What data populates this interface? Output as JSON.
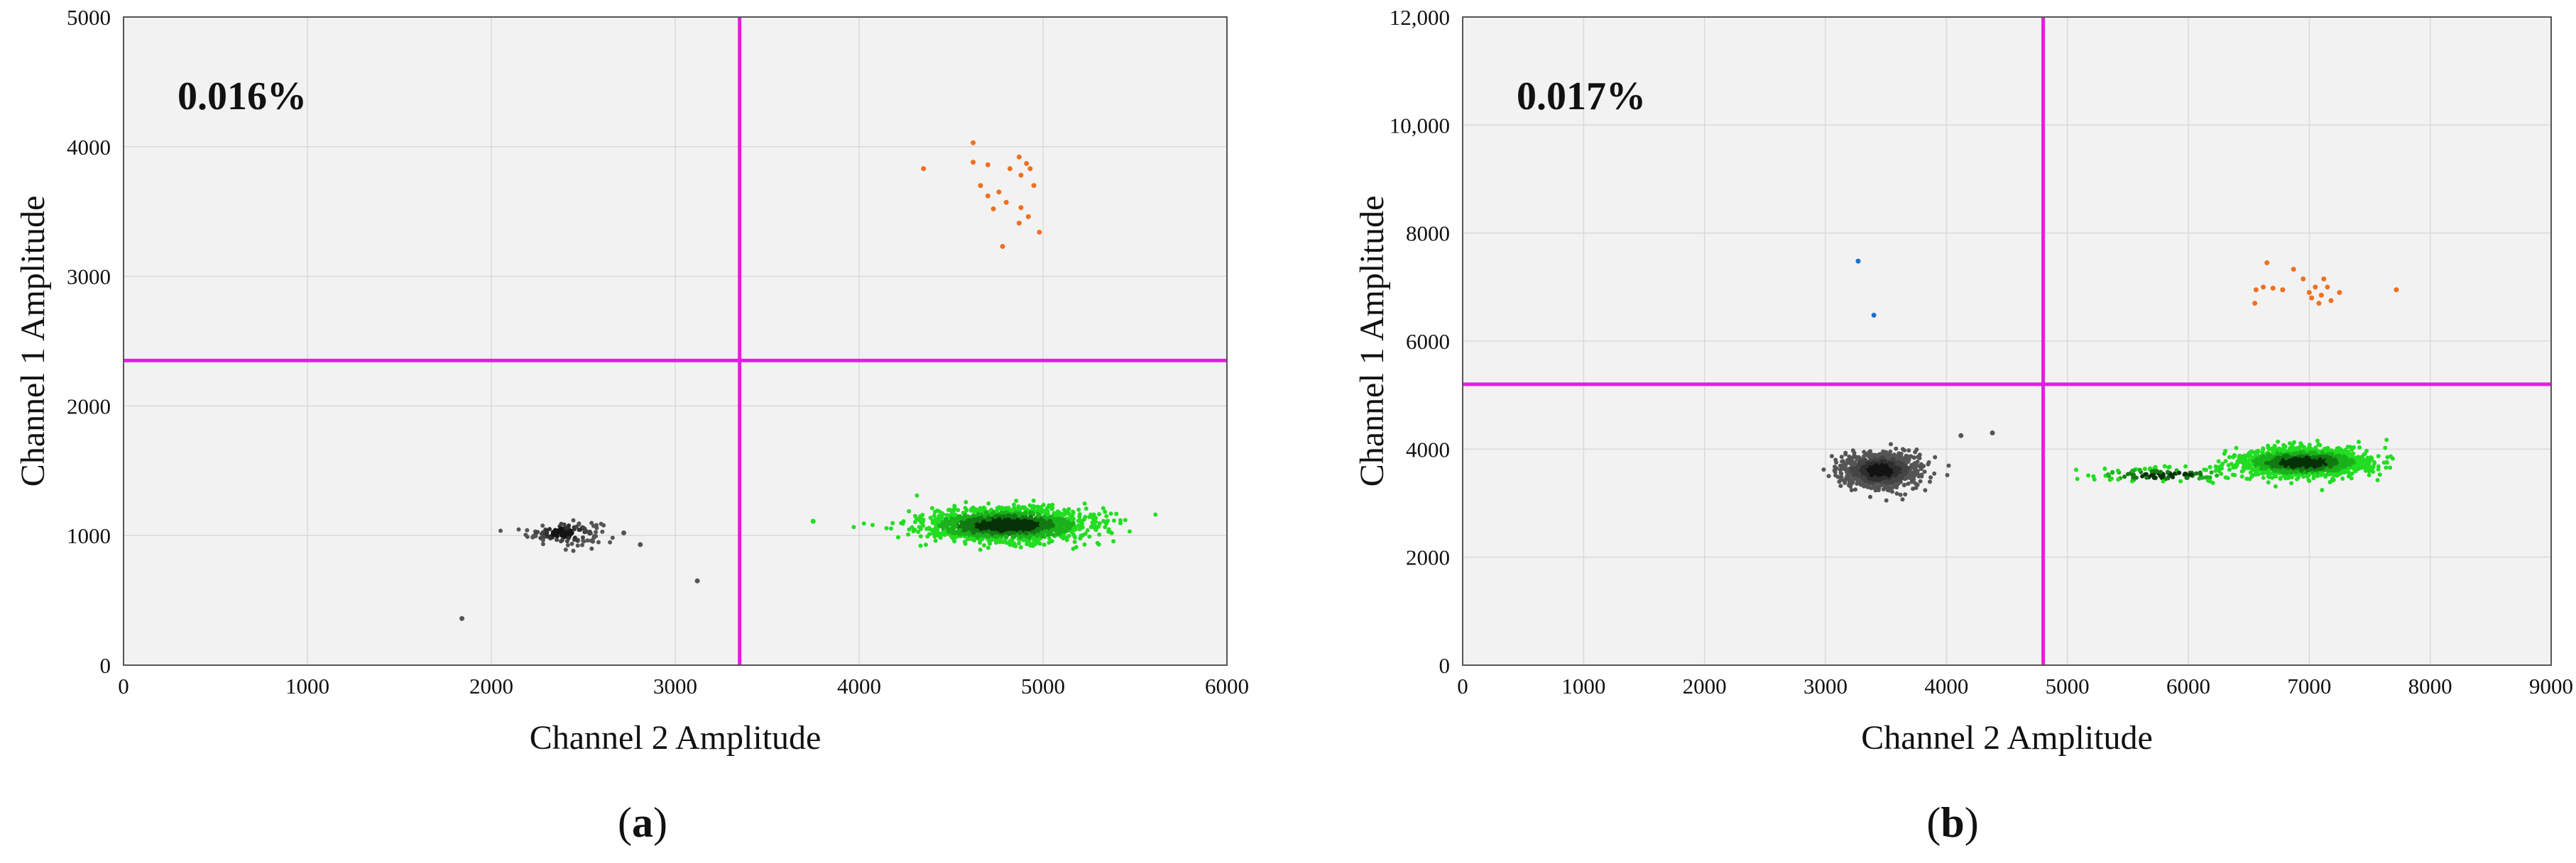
{
  "colors": {
    "plot_background": "#f2f2f2",
    "grid": "#d9d9d9",
    "threshold": "#e020e0",
    "double_negative": "#555555",
    "channel2_positive": "#22dd22",
    "channel1_positive": "#f07020",
    "stray": "#1a6fd0"
  },
  "chart_data": [
    {
      "type": "scatter",
      "panel_label": "a",
      "annotation": "0.016%",
      "xlabel": "Channel 2 Amplitude",
      "ylabel": "Channel 1 Amplitude",
      "xlim": [
        0,
        6000
      ],
      "ylim": [
        0,
        5000
      ],
      "xticks": [
        "0",
        "1000",
        "2000",
        "3000",
        "4000",
        "5000",
        "6000"
      ],
      "yticks": [
        "0",
        "1000",
        "2000",
        "3000",
        "4000",
        "5000"
      ],
      "grid": true,
      "thresholds": {
        "x": 3350,
        "y": 2350
      },
      "clusters": [
        {
          "color_key": "double_negative",
          "cx": 2400,
          "cy": 1020,
          "sx": 100,
          "sy": 45,
          "n": 140
        },
        {
          "color_key": "channel2_positive",
          "cx": 4800,
          "cy": 1080,
          "sx": 230,
          "sy": 65,
          "n": 1600
        }
      ],
      "points": [
        {
          "color_key": "double_negative",
          "x": 1840,
          "y": 360
        },
        {
          "color_key": "double_negative",
          "x": 2720,
          "y": 1020
        },
        {
          "color_key": "double_negative",
          "x": 2810,
          "y": 930
        },
        {
          "color_key": "double_negative",
          "x": 3120,
          "y": 650
        },
        {
          "color_key": "channel2_positive",
          "x": 3750,
          "y": 1110
        },
        {
          "color_key": "channel1_positive",
          "x": 4350,
          "y": 3830
        },
        {
          "color_key": "channel1_positive",
          "x": 4620,
          "y": 4030
        },
        {
          "color_key": "channel1_positive",
          "x": 4620,
          "y": 3880
        },
        {
          "color_key": "channel1_positive",
          "x": 4700,
          "y": 3860
        },
        {
          "color_key": "channel1_positive",
          "x": 4820,
          "y": 3830
        },
        {
          "color_key": "channel1_positive",
          "x": 4870,
          "y": 3920
        },
        {
          "color_key": "channel1_positive",
          "x": 4910,
          "y": 3870
        },
        {
          "color_key": "channel1_positive",
          "x": 4930,
          "y": 3830
        },
        {
          "color_key": "channel1_positive",
          "x": 4880,
          "y": 3780
        },
        {
          "color_key": "channel1_positive",
          "x": 4660,
          "y": 3700
        },
        {
          "color_key": "channel1_positive",
          "x": 4700,
          "y": 3620
        },
        {
          "color_key": "channel1_positive",
          "x": 4760,
          "y": 3650
        },
        {
          "color_key": "channel1_positive",
          "x": 4950,
          "y": 3700
        },
        {
          "color_key": "channel1_positive",
          "x": 4730,
          "y": 3520
        },
        {
          "color_key": "channel1_positive",
          "x": 4800,
          "y": 3570
        },
        {
          "color_key": "channel1_positive",
          "x": 4880,
          "y": 3530
        },
        {
          "color_key": "channel1_positive",
          "x": 4920,
          "y": 3460
        },
        {
          "color_key": "channel1_positive",
          "x": 4870,
          "y": 3410
        },
        {
          "color_key": "channel1_positive",
          "x": 4980,
          "y": 3340
        },
        {
          "color_key": "channel1_positive",
          "x": 4780,
          "y": 3230
        }
      ]
    },
    {
      "type": "scatter",
      "panel_label": "b",
      "annotation": "0.017%",
      "xlabel": "Channel 2 Amplitude",
      "ylabel": "Channel 1 Amplitude",
      "xlim": [
        0,
        9000
      ],
      "ylim": [
        0,
        12000
      ],
      "xticks": [
        "0",
        "1000",
        "2000",
        "3000",
        "4000",
        "5000",
        "6000",
        "7000",
        "8000",
        "9000"
      ],
      "yticks": [
        "0",
        "2000",
        "4000",
        "6000",
        "8000",
        "10,000",
        "12,000"
      ],
      "grid": true,
      "thresholds": {
        "x": 4800,
        "y": 5200
      },
      "clusters": [
        {
          "color_key": "double_negative",
          "cx": 3450,
          "cy": 3600,
          "sx": 150,
          "sy": 150,
          "n": 1300
        },
        {
          "color_key": "channel2_positive",
          "cx": 6950,
          "cy": 3750,
          "sx": 260,
          "sy": 130,
          "n": 1600
        },
        {
          "color_key": "channel2_positive",
          "cx": 5800,
          "cy": 3520,
          "sx": 300,
          "sy": 70,
          "n": 120
        }
      ],
      "points": [
        {
          "color_key": "double_negative",
          "x": 4120,
          "y": 4250
        },
        {
          "color_key": "double_negative",
          "x": 4380,
          "y": 4300
        },
        {
          "color_key": "stray",
          "x": 3270,
          "y": 7480
        },
        {
          "color_key": "stray",
          "x": 3400,
          "y": 6480
        },
        {
          "color_key": "channel1_positive",
          "x": 6650,
          "y": 7450
        },
        {
          "color_key": "channel1_positive",
          "x": 6870,
          "y": 7330
        },
        {
          "color_key": "channel1_positive",
          "x": 6950,
          "y": 7150
        },
        {
          "color_key": "channel1_positive",
          "x": 6560,
          "y": 6950
        },
        {
          "color_key": "channel1_positive",
          "x": 6620,
          "y": 7000
        },
        {
          "color_key": "channel1_positive",
          "x": 6700,
          "y": 6980
        },
        {
          "color_key": "channel1_positive",
          "x": 6780,
          "y": 6950
        },
        {
          "color_key": "channel1_positive",
          "x": 6550,
          "y": 6700
        },
        {
          "color_key": "channel1_positive",
          "x": 7000,
          "y": 6900
        },
        {
          "color_key": "channel1_positive",
          "x": 7050,
          "y": 7000
        },
        {
          "color_key": "channel1_positive",
          "x": 7100,
          "y": 6850
        },
        {
          "color_key": "channel1_positive",
          "x": 7120,
          "y": 7150
        },
        {
          "color_key": "channel1_positive",
          "x": 7150,
          "y": 7000
        },
        {
          "color_key": "channel1_positive",
          "x": 7180,
          "y": 6750
        },
        {
          "color_key": "channel1_positive",
          "x": 7250,
          "y": 6900
        },
        {
          "color_key": "channel1_positive",
          "x": 7020,
          "y": 6800
        },
        {
          "color_key": "channel1_positive",
          "x": 7080,
          "y": 6700
        },
        {
          "color_key": "channel1_positive",
          "x": 7720,
          "y": 6950
        }
      ]
    }
  ]
}
